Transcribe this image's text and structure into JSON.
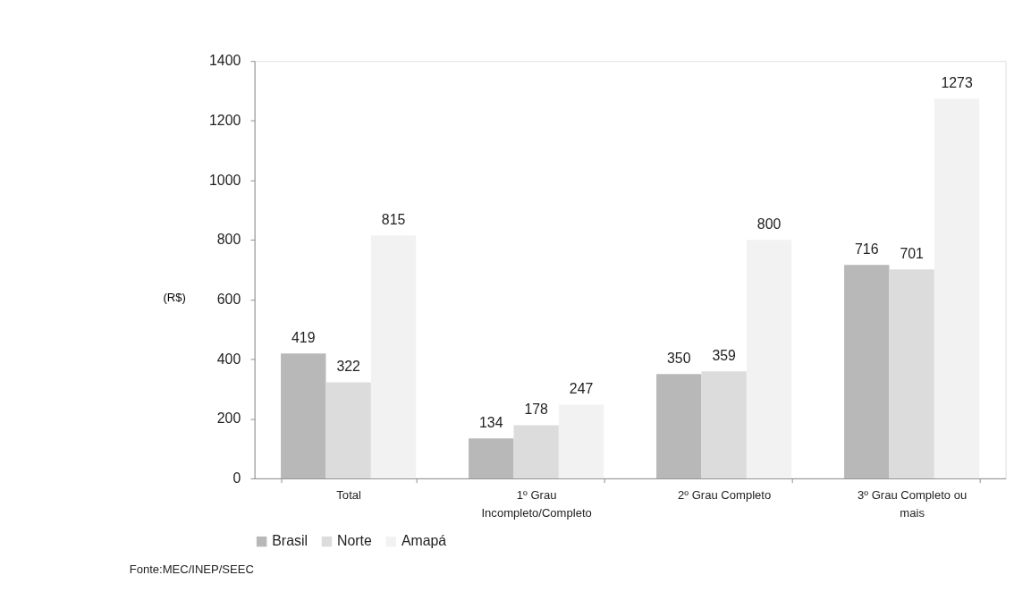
{
  "chart_data": {
    "type": "bar",
    "ylabel": "(R$)",
    "categories": [
      "Total",
      "1º Grau\nIncompleto/Completo",
      "2º Grau Completo",
      "3º Grau Completo ou\nmais"
    ],
    "series": [
      {
        "name": "Brasil",
        "color": "#b8b8b8",
        "values": [
          419,
          134,
          350,
          716
        ]
      },
      {
        "name": "Norte",
        "color": "#dcdcdc",
        "values": [
          322,
          178,
          359,
          701
        ]
      },
      {
        "name": "Amapá",
        "color": "#f2f2f2",
        "values": [
          815,
          247,
          800,
          1273
        ]
      }
    ],
    "ylim": [
      0,
      1400
    ],
    "yticks": [
      0,
      200,
      400,
      600,
      800,
      1000,
      1200,
      1400
    ],
    "data_labels": true,
    "grid": false,
    "legend": "bottom",
    "annotations": [
      "Fonte:MEC/INEP/SEEC"
    ]
  }
}
